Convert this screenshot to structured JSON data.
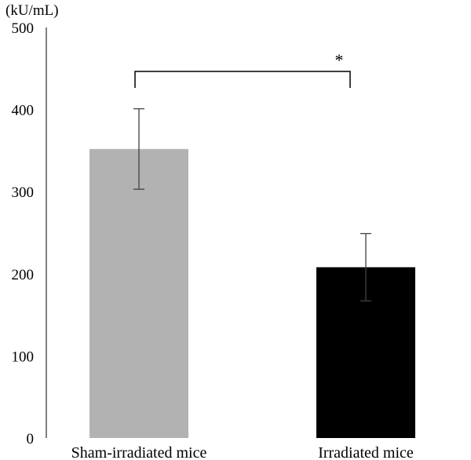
{
  "chart_data": {
    "type": "bar",
    "title": "",
    "xlabel": "",
    "ylabel": "(kU/mL)",
    "ylim": [
      0,
      500
    ],
    "yticks": [
      0,
      100,
      200,
      300,
      400,
      500
    ],
    "grid": false,
    "categories": [
      "Sham-irradiated mice",
      "Irradiated mice"
    ],
    "values": [
      352,
      208
    ],
    "errors": [
      49,
      41
    ],
    "colors": [
      "#b2b2b2",
      "#000000"
    ],
    "significance": {
      "label": "*",
      "between": [
        0,
        1
      ]
    }
  }
}
